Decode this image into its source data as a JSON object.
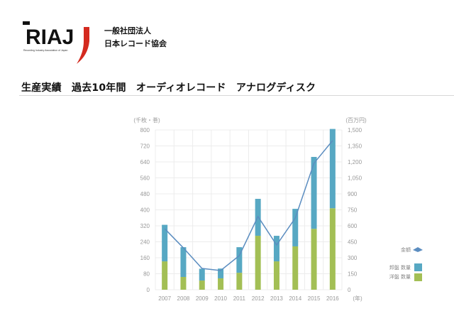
{
  "header": {
    "logo_text": "RIAJ",
    "logo_subtext": "Recording Industry Association of Japan",
    "org_line1": "一般社団法人",
    "org_line2": "日本レコード協会"
  },
  "page_title": "生産実績　過去10年間　オーディオレコード　アナログディスク",
  "colors": {
    "domestic": "#57a8c3",
    "foreign": "#a3bf55",
    "amount_line": "#5b8dc0",
    "logo_red": "#d42a1f"
  },
  "chart_data": {
    "type": "bar",
    "stacked": true,
    "title": "生産実績　過去10年間　オーディオレコード　アナログディスク",
    "categories": [
      "2007",
      "2008",
      "2009",
      "2010",
      "2011",
      "2012",
      "2013",
      "2014",
      "2015",
      "2016"
    ],
    "xlabel": "(年)",
    "ylabel_left": "(千枚・巻)",
    "ylabel_right": "(百万円)",
    "ylim_left": [
      0,
      800
    ],
    "ylim_right": [
      0,
      1500
    ],
    "yticks_left": [
      "0",
      "80",
      "160",
      "240",
      "320",
      "400",
      "480",
      "560",
      "640",
      "720",
      "800"
    ],
    "yticks_right": [
      "0",
      "150",
      "300",
      "450",
      "600",
      "750",
      "900",
      "1,050",
      "1,200",
      "1,350",
      "1,500"
    ],
    "grid": true,
    "legend_position": "right",
    "series": [
      {
        "name": "洋盤 数量",
        "type": "bar",
        "axis": "left",
        "values": [
          142,
          64,
          46,
          57,
          85,
          270,
          142,
          217,
          305,
          408
        ]
      },
      {
        "name": "邦盤 数量",
        "type": "bar",
        "axis": "left",
        "values": [
          183,
          149,
          59,
          49,
          128,
          185,
          128,
          188,
          360,
          397
        ]
      },
      {
        "name": "金額",
        "type": "line",
        "axis": "right",
        "values": [
          573,
          393,
          200,
          180,
          320,
          687,
          420,
          673,
          1187,
          1400
        ]
      }
    ]
  },
  "legend": {
    "amount": "金額",
    "domestic": "邦盤 数量",
    "foreign": "洋盤 数量"
  }
}
